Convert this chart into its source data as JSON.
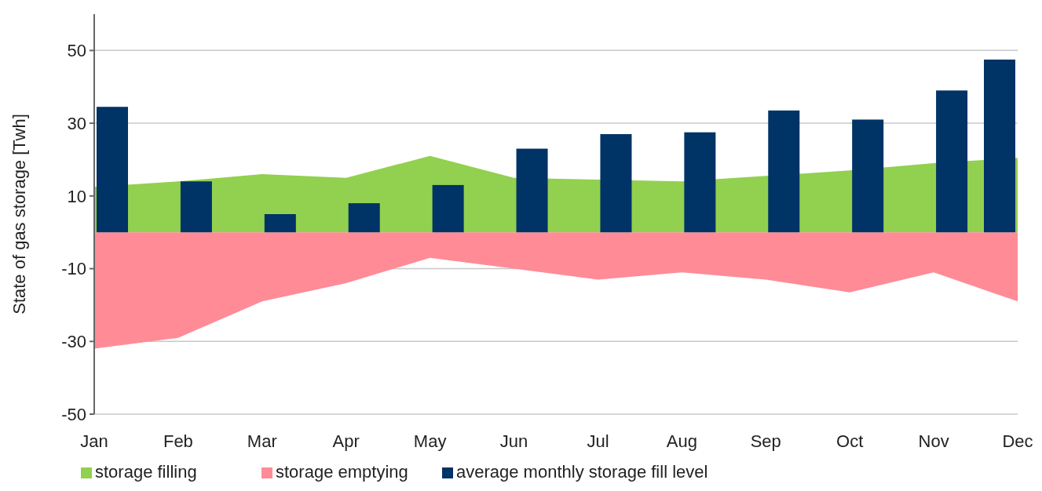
{
  "chart_data": {
    "type": "area",
    "ylabel": "State of gas storage [Twh]",
    "categories": [
      "Jan",
      "Feb",
      "Mar",
      "Apr",
      "May",
      "Jun",
      "Jul",
      "Aug",
      "Sep",
      "Oct",
      "Nov",
      "Dec"
    ],
    "series": [
      {
        "name": "storage filling",
        "color": "#92d050",
        "values": [
          12.5,
          14,
          16,
          15,
          21,
          15,
          14.5,
          14,
          15.5,
          17,
          19,
          20.5
        ]
      },
      {
        "name": "storage emptying",
        "color": "#ff8b97",
        "values": [
          -32,
          -29,
          -19,
          -14,
          -7,
          -10,
          -13,
          -11,
          -13,
          -16.5,
          -11,
          -19
        ]
      },
      {
        "name": "average monthly storage fill level",
        "type": "bar",
        "color": "#003366",
        "values": [
          34.5,
          14,
          5,
          8,
          13,
          23,
          27,
          27.5,
          33.5,
          31,
          39,
          47.5
        ]
      }
    ],
    "ylim": [
      -50,
      60
    ],
    "yticks": [
      -50,
      -30,
      -10,
      10,
      30,
      50
    ],
    "grid": "y",
    "legend": "bottom"
  }
}
